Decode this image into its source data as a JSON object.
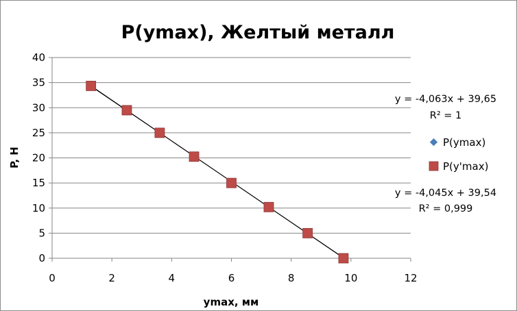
{
  "chart_data": {
    "type": "scatter",
    "title": "P(ymax), Желтый металл",
    "xlabel": "ymax, мм",
    "ylabel": "P, Н",
    "xlim": [
      0,
      12
    ],
    "ylim": [
      0,
      40
    ],
    "xticks": [
      "0",
      "2",
      "4",
      "6",
      "8",
      "10",
      "12"
    ],
    "yticks": [
      "0",
      "5",
      "10",
      "15",
      "20",
      "25",
      "30",
      "35",
      "40"
    ],
    "grid": "horizontal",
    "legend_position": "right",
    "series": [
      {
        "name": "P(ymax)",
        "marker": "diamond",
        "color": "#4a7ebb",
        "x": [
          1.3,
          2.5,
          3.6,
          4.75,
          6.0,
          7.25,
          8.55,
          9.75
        ],
        "y": [
          34.35,
          29.5,
          25.0,
          20.25,
          15.0,
          10.2,
          5.0,
          0.0
        ]
      },
      {
        "name": "P(y'max)",
        "marker": "square",
        "color": "#be4b48",
        "x": [
          1.3,
          2.5,
          3.6,
          4.75,
          6.0,
          7.25,
          8.55,
          9.75
        ],
        "y": [
          34.35,
          29.5,
          25.0,
          20.25,
          15.0,
          10.2,
          5.0,
          0.0
        ]
      }
    ],
    "trendlines": [
      {
        "equation": "y = -4,063x + 39,65",
        "r2": "R² = 1",
        "slope": -4.063,
        "intercept": 39.65,
        "x_range": [
          1.3,
          9.75
        ]
      },
      {
        "equation": "y = -4,045x + 39,54",
        "r2": "R² = 0,999",
        "slope": -4.045,
        "intercept": 39.54,
        "x_range": [
          1.3,
          9.75
        ]
      }
    ]
  }
}
